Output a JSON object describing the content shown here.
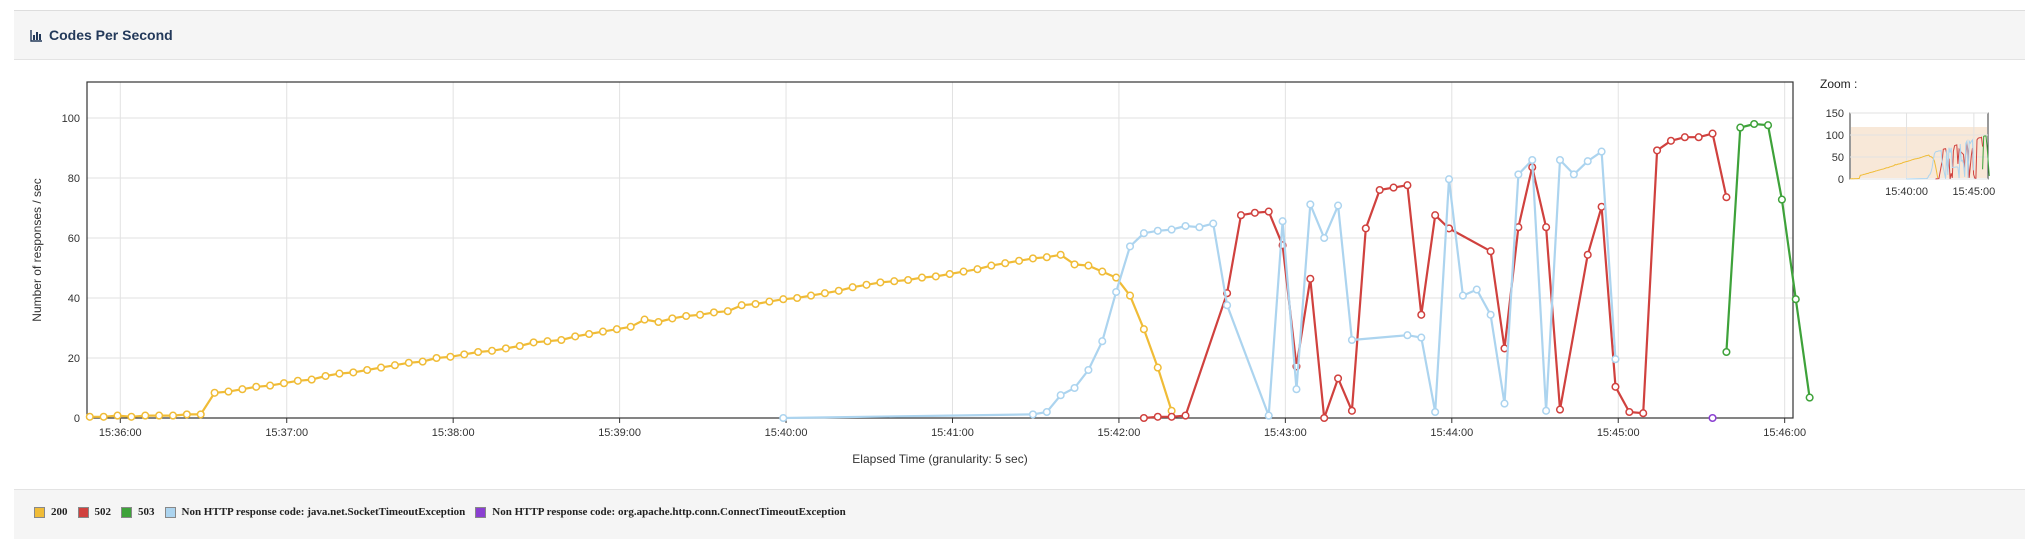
{
  "panel": {
    "title": "Codes Per Second",
    "icon": "bar-chart-icon"
  },
  "zoom": {
    "label": "Zoom :",
    "yticks": [
      "150",
      "100",
      "50",
      "0"
    ],
    "xticks": [
      "15:40:00",
      "15:45:00"
    ]
  },
  "legend": [
    {
      "label": "200",
      "color": "#f0bc37"
    },
    {
      "label": "502",
      "color": "#d0413e"
    },
    {
      "label": "503",
      "color": "#3ea23a"
    },
    {
      "label": "Non HTTP response code: java.net.SocketTimeoutException",
      "color": "#acd4ef"
    },
    {
      "label": "Non HTTP response code: org.apache.http.conn.ConnectTimeoutException",
      "color": "#8a3fd1"
    }
  ],
  "chart_data": {
    "type": "line",
    "title": "Codes Per Second",
    "xlabel": "Elapsed Time (granularity: 5 sec)",
    "ylabel": "Number of responses / sec",
    "ylim": [
      0,
      112
    ],
    "xlim": [
      "15:35:48",
      "15:46:03"
    ],
    "yticks": [
      "0",
      "20",
      "40",
      "60",
      "80",
      "100"
    ],
    "xticks": [
      "15:36:00",
      "15:37:00",
      "15:38:00",
      "15:39:00",
      "15:40:00",
      "15:41:00",
      "15:42:00",
      "15:43:00",
      "15:44:00",
      "15:45:00",
      "15:46:00"
    ],
    "grid": true,
    "legend_position": "bottom",
    "series": [
      {
        "name": "200",
        "color": "#f0bc37",
        "points": [
          [
            "15:35:49",
            0.4
          ],
          [
            "15:35:54",
            0.4
          ],
          [
            "15:35:59",
            0.8
          ],
          [
            "15:36:04",
            0.4
          ],
          [
            "15:36:09",
            0.8
          ],
          [
            "15:36:14",
            0.8
          ],
          [
            "15:36:19",
            0.8
          ],
          [
            "15:36:24",
            1.2
          ],
          [
            "15:36:29",
            1.2
          ],
          [
            "15:36:34",
            8.4
          ],
          [
            "15:36:39",
            8.8
          ],
          [
            "15:36:44",
            9.6
          ],
          [
            "15:36:49",
            10.4
          ],
          [
            "15:36:54",
            10.8
          ],
          [
            "15:36:59",
            11.6
          ],
          [
            "15:37:04",
            12.4
          ],
          [
            "15:37:09",
            12.8
          ],
          [
            "15:37:14",
            14
          ],
          [
            "15:37:19",
            14.8
          ],
          [
            "15:37:24",
            15.2
          ],
          [
            "15:37:29",
            16
          ],
          [
            "15:37:34",
            16.8
          ],
          [
            "15:37:39",
            17.6
          ],
          [
            "15:37:44",
            18.4
          ],
          [
            "15:37:49",
            18.8
          ],
          [
            "15:37:54",
            20
          ],
          [
            "15:37:59",
            20.4
          ],
          [
            "15:38:04",
            21.2
          ],
          [
            "15:38:09",
            22
          ],
          [
            "15:38:14",
            22.4
          ],
          [
            "15:38:19",
            23.2
          ],
          [
            "15:38:24",
            24
          ],
          [
            "15:38:29",
            25.2
          ],
          [
            "15:38:34",
            25.6
          ],
          [
            "15:38:39",
            26
          ],
          [
            "15:38:44",
            27.2
          ],
          [
            "15:38:49",
            28
          ],
          [
            "15:38:54",
            28.8
          ],
          [
            "15:38:59",
            29.6
          ],
          [
            "15:39:04",
            30.4
          ],
          [
            "15:39:09",
            32.8
          ],
          [
            "15:39:14",
            32
          ],
          [
            "15:39:19",
            33.2
          ],
          [
            "15:39:24",
            34
          ],
          [
            "15:39:29",
            34.4
          ],
          [
            "15:39:34",
            35.2
          ],
          [
            "15:39:39",
            35.6
          ],
          [
            "15:39:44",
            37.6
          ],
          [
            "15:39:49",
            38
          ],
          [
            "15:39:54",
            38.8
          ],
          [
            "15:39:59",
            39.6
          ],
          [
            "15:40:04",
            40
          ],
          [
            "15:40:09",
            40.8
          ],
          [
            "15:40:14",
            41.6
          ],
          [
            "15:40:19",
            42.4
          ],
          [
            "15:40:24",
            43.6
          ],
          [
            "15:40:29",
            44.4
          ],
          [
            "15:40:34",
            45.2
          ],
          [
            "15:40:39",
            45.6
          ],
          [
            "15:40:44",
            46
          ],
          [
            "15:40:49",
            46.8
          ],
          [
            "15:40:54",
            47.2
          ],
          [
            "15:40:59",
            48
          ],
          [
            "15:41:04",
            48.8
          ],
          [
            "15:41:09",
            49.6
          ],
          [
            "15:41:14",
            50.8
          ],
          [
            "15:41:19",
            51.6
          ],
          [
            "15:41:24",
            52.4
          ],
          [
            "15:41:29",
            53.2
          ],
          [
            "15:41:34",
            53.6
          ],
          [
            "15:41:39",
            54.4
          ],
          [
            "15:41:44",
            51.2
          ],
          [
            "15:41:49",
            50.8
          ],
          [
            "15:41:54",
            48.8
          ],
          [
            "15:41:59",
            46.8
          ],
          [
            "15:42:04",
            40.8
          ],
          [
            "15:42:09",
            29.6
          ],
          [
            "15:42:14",
            16.8
          ],
          [
            "15:42:19",
            2.4
          ]
        ]
      },
      {
        "name": "502",
        "color": "#d0413e",
        "points": [
          [
            "15:42:09",
            0
          ],
          [
            "15:42:14",
            0.4
          ],
          [
            "15:42:19",
            0.4
          ],
          [
            "15:42:24",
            0.8
          ],
          [
            "15:42:39",
            41.6
          ],
          [
            "15:42:44",
            67.6
          ],
          [
            "15:42:49",
            68.4
          ],
          [
            "15:42:54",
            68.8
          ],
          [
            "15:42:59",
            57.6
          ],
          [
            "15:43:04",
            17.2
          ],
          [
            "15:43:09",
            46.4
          ],
          [
            "15:43:14",
            0
          ],
          [
            "15:43:19",
            13.2
          ],
          [
            "15:43:24",
            2.4
          ],
          [
            "15:43:29",
            63.2
          ],
          [
            "15:43:34",
            76
          ],
          [
            "15:43:39",
            76.8
          ],
          [
            "15:43:44",
            77.6
          ],
          [
            "15:43:49",
            34.4
          ],
          [
            "15:43:54",
            67.6
          ],
          [
            "15:43:59",
            63.2
          ],
          [
            "15:44:14",
            55.6
          ],
          [
            "15:44:19",
            23.2
          ],
          [
            "15:44:24",
            63.6
          ],
          [
            "15:44:29",
            83.6
          ],
          [
            "15:44:34",
            63.6
          ],
          [
            "15:44:39",
            2.8
          ],
          [
            "15:44:49",
            54.4
          ],
          [
            "15:44:54",
            70.4
          ],
          [
            "15:44:59",
            10.4
          ],
          [
            "15:45:04",
            2
          ],
          [
            "15:45:09",
            1.6
          ],
          [
            "15:45:14",
            89.2
          ],
          [
            "15:45:19",
            92.4
          ],
          [
            "15:45:24",
            93.6
          ],
          [
            "15:45:29",
            93.6
          ],
          [
            "15:45:34",
            94.8
          ],
          [
            "15:45:39",
            73.6
          ]
        ]
      },
      {
        "name": "503",
        "color": "#3ea23a",
        "points": [
          [
            "15:45:39",
            22
          ],
          [
            "15:45:44",
            96.8
          ],
          [
            "15:45:49",
            98
          ],
          [
            "15:45:54",
            97.6
          ],
          [
            "15:45:59",
            72.8
          ],
          [
            "15:46:04",
            39.6
          ],
          [
            "15:46:09",
            6.8
          ]
        ]
      },
      {
        "name": "Non HTTP response code: java.net.SocketTimeoutException",
        "color": "#acd4ef",
        "points": [
          [
            "15:39:59",
            0
          ],
          [
            "15:41:29",
            1.2
          ],
          [
            "15:41:34",
            2
          ],
          [
            "15:41:39",
            7.6
          ],
          [
            "15:41:44",
            10
          ],
          [
            "15:41:49",
            16
          ],
          [
            "15:41:54",
            25.6
          ],
          [
            "15:41:59",
            42
          ],
          [
            "15:42:04",
            57.2
          ],
          [
            "15:42:09",
            61.6
          ],
          [
            "15:42:14",
            62.4
          ],
          [
            "15:42:19",
            62.8
          ],
          [
            "15:42:24",
            64
          ],
          [
            "15:42:29",
            63.6
          ],
          [
            "15:42:34",
            64.8
          ],
          [
            "15:42:39",
            37.6
          ],
          [
            "15:42:54",
            0.8
          ],
          [
            "15:42:59",
            65.6
          ],
          [
            "15:43:04",
            9.6
          ],
          [
            "15:43:09",
            71.2
          ],
          [
            "15:43:14",
            60
          ],
          [
            "15:43:19",
            70.8
          ],
          [
            "15:43:24",
            26
          ],
          [
            "15:43:44",
            27.6
          ],
          [
            "15:43:49",
            26.8
          ],
          [
            "15:43:54",
            2
          ],
          [
            "15:43:59",
            79.6
          ],
          [
            "15:44:04",
            40.8
          ],
          [
            "15:44:09",
            42.8
          ],
          [
            "15:44:14",
            34.4
          ],
          [
            "15:44:19",
            4.8
          ],
          [
            "15:44:24",
            81.2
          ],
          [
            "15:44:29",
            86
          ],
          [
            "15:44:34",
            2.4
          ],
          [
            "15:44:39",
            86
          ],
          [
            "15:44:44",
            81.2
          ],
          [
            "15:44:49",
            85.6
          ],
          [
            "15:44:54",
            88.8
          ],
          [
            "15:44:59",
            19.6
          ]
        ]
      },
      {
        "name": "Non HTTP response code: org.apache.http.conn.ConnectTimeoutException",
        "color": "#8a3fd1",
        "points": [
          [
            "15:45:34",
            0
          ]
        ]
      }
    ]
  }
}
